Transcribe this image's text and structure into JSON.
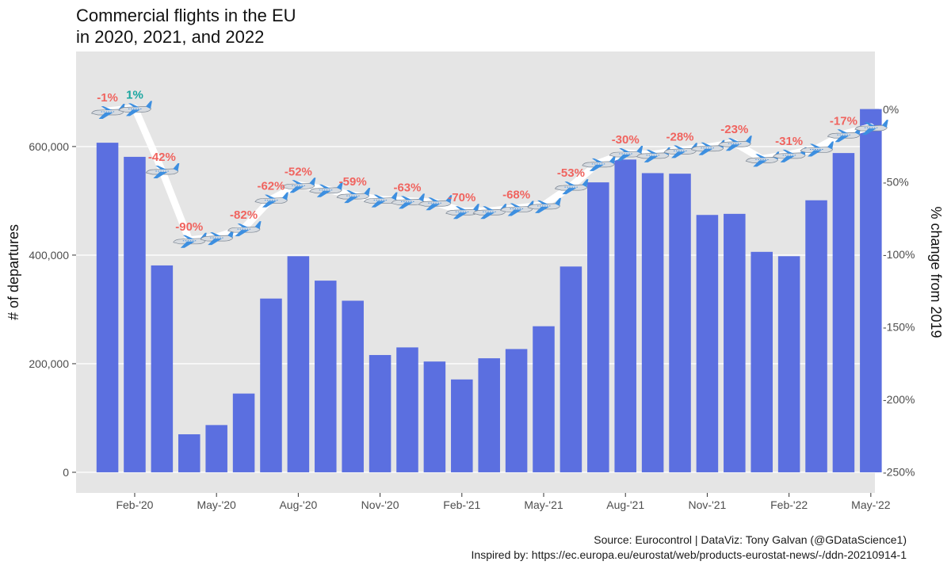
{
  "title_line1": "Commercial flights in the EU",
  "title_line2": "in 2020, 2021, and 2022",
  "caption_line1": "Source: Eurocontrol  |  DataViz: Tony Galvan (@GDataScience1)",
  "caption_line2": "Inspired by: https://ec.europa.eu/eurostat/web/products-eurostat-news/-/ddn-20210914-1",
  "colors": {
    "bar": "#5b6fe0",
    "panel": "#e5e5e5",
    "grid": "#ffffff",
    "label_negative": "#f0645f",
    "label_positive": "#1aa6a0",
    "line": "#ffffff"
  },
  "chart_data": {
    "type": "bar",
    "categories": [
      "Jan-'20",
      "Feb-'20",
      "Mar-'20",
      "Apr-'20",
      "May-'20",
      "Jun-'20",
      "Jul-'20",
      "Aug-'20",
      "Sep-'20",
      "Oct-'20",
      "Nov-'20",
      "Dec-'20",
      "Jan-'21",
      "Feb-'21",
      "Mar-'21",
      "Apr-'21",
      "May-'21",
      "Jun-'21",
      "Jul-'21",
      "Aug-'21",
      "Sep-'21",
      "Oct-'21",
      "Nov-'21",
      "Dec-'21",
      "Jan-'22",
      "Feb-'22",
      "Mar-'22",
      "Apr-'22",
      "May-'22"
    ],
    "x_tick_labels": [
      "Feb-'20",
      "May-'20",
      "Aug-'20",
      "Nov-'20",
      "Feb-'21",
      "May-'21",
      "Aug-'21",
      "Nov-'21",
      "Feb-'22",
      "May-'22"
    ],
    "x_tick_indices": [
      1,
      4,
      7,
      10,
      13,
      16,
      19,
      22,
      25,
      28
    ],
    "series": [
      {
        "axis": "left",
        "values": [
          607000,
          581000,
          381000,
          70000,
          87000,
          145000,
          320000,
          398000,
          353000,
          316000,
          216000,
          230000,
          204000,
          171000,
          210000,
          227000,
          269000,
          379000,
          534000,
          576000,
          551000,
          550000,
          474000,
          476000,
          406000,
          398000,
          501000,
          588000,
          669000
        ]
      },
      {
        "axis": "right",
        "type": "line",
        "values": [
          -1,
          1,
          -42,
          -90,
          -88,
          -82,
          -62,
          -52,
          -55,
          -59,
          -62,
          -63,
          -64,
          -70,
          -70,
          -68,
          -66,
          -53,
          -37,
          -30,
          -31,
          -28,
          -26,
          -23,
          -34,
          -31,
          -27,
          -17,
          -12
        ],
        "labels": [
          "-1%",
          "1%",
          "-42%",
          "-90%",
          "",
          "-82%",
          "-62%",
          "-52%",
          "",
          "-59%",
          "",
          "-63%",
          "",
          "-70%",
          "",
          "-68%",
          "",
          "-53%",
          "",
          "-30%",
          "",
          "-28%",
          "",
          "-23%",
          "",
          "-31%",
          "",
          "-17%",
          ""
        ]
      }
    ],
    "ylabel": "# of departures",
    "ylim": [
      -38000,
      775000
    ],
    "y_ticks": [
      0,
      200000,
      400000,
      600000
    ],
    "y_tick_labels": [
      "0",
      "200,000",
      "400,000",
      "600,000"
    ],
    "y2label": "% change from 2019",
    "y2lim": [
      -264.5,
      40
    ],
    "y2_ticks": [
      0,
      -50,
      -100,
      -150,
      -200,
      -250
    ],
    "y2_tick_labels": [
      "0%",
      "-50%",
      "-100%",
      "-150%",
      "-200%",
      "-250%"
    ],
    "grid": true
  }
}
